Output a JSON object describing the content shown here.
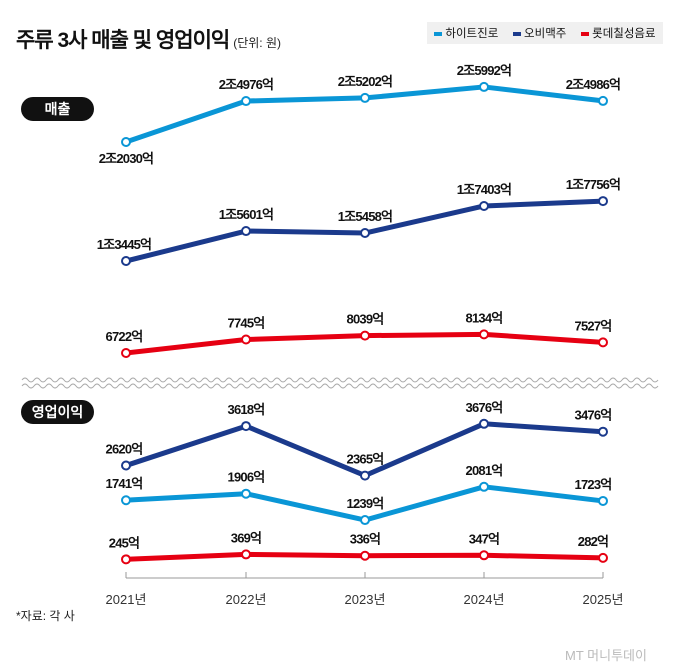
{
  "title": "주류 3사 매출 및 영업이익",
  "unit": "(단위: 원)",
  "source": "*자료: 각 사",
  "watermark": "MT 머니투데이",
  "chart_data": [
    {
      "type": "line",
      "panel_label": "매출",
      "categories": [
        "2021년",
        "2022년",
        "2023년",
        "2024년",
        "2025년"
      ],
      "series": [
        {
          "name": "하이트진로",
          "color": "#0a96d6",
          "values": [
            22030,
            24976,
            25202,
            25992,
            24986
          ],
          "labels": [
            "2조2030억",
            "2조4976억",
            "2조5202억",
            "2조5992억",
            "2조4986억"
          ]
        },
        {
          "name": "오비맥주",
          "color": "#1b3a8c",
          "values": [
            13445,
            15601,
            15458,
            17403,
            17756
          ],
          "labels": [
            "1조3445억",
            "1조5601억",
            "1조5458억",
            "1조7403억",
            "1조7756억"
          ]
        },
        {
          "name": "롯데칠성음료",
          "color": "#e60012",
          "values": [
            6722,
            7745,
            8039,
            8134,
            7527
          ],
          "labels": [
            "6722억",
            "7745억",
            "8039억",
            "8134억",
            "7527억"
          ]
        }
      ]
    },
    {
      "type": "line",
      "panel_label": "영업이익",
      "categories": [
        "2021년",
        "2022년",
        "2023년",
        "2024년",
        "2025년"
      ],
      "series": [
        {
          "name": "오비맥주",
          "color": "#1b3a8c",
          "values": [
            2620,
            3618,
            2365,
            3676,
            3476
          ],
          "labels": [
            "2620억",
            "3618억",
            "2365억",
            "3676억",
            "3476억"
          ]
        },
        {
          "name": "하이트진로",
          "color": "#0a96d6",
          "values": [
            1741,
            1906,
            1239,
            2081,
            1723
          ],
          "labels": [
            "1741억",
            "1906억",
            "1239억",
            "2081억",
            "1723억"
          ]
        },
        {
          "name": "롯데칠성음료",
          "color": "#e60012",
          "values": [
            245,
            369,
            336,
            347,
            282
          ],
          "labels": [
            "245억",
            "369억",
            "336억",
            "347억",
            "282억"
          ]
        }
      ]
    }
  ]
}
